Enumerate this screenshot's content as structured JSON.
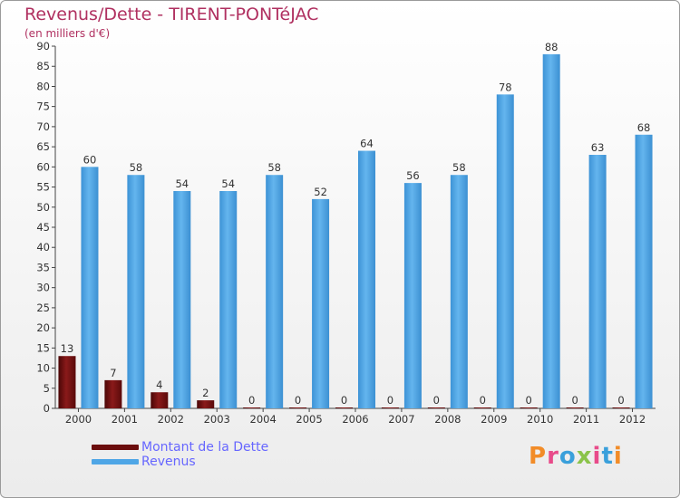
{
  "header": {
    "title": "Revenus/Dette - TIRENT-PONTéJAC",
    "subtitle": "(en milliers d'€)"
  },
  "legend": {
    "items": [
      {
        "label": "Montant de la Dette",
        "color": "#6b0d0d"
      },
      {
        "label": "Revenus",
        "color": "#4fa6e6"
      }
    ]
  },
  "logo": {
    "text": "Proxiti",
    "colors": [
      "#f28c28",
      "#e84b8a",
      "#3aa0db",
      "#8bc34a",
      "#e84b8a",
      "#3aa0db",
      "#f28c28"
    ]
  },
  "chart_data": {
    "type": "bar",
    "categories": [
      "2000",
      "2001",
      "2002",
      "2003",
      "2004",
      "2005",
      "2006",
      "2007",
      "2008",
      "2009",
      "2010",
      "2011",
      "2012"
    ],
    "series": [
      {
        "name": "Montant de la Dette",
        "color": "#6b0d0d",
        "values": [
          13,
          7,
          4,
          2,
          0,
          0,
          0,
          0,
          0,
          0,
          0,
          0,
          0
        ]
      },
      {
        "name": "Revenus",
        "color": "#4fa6e6",
        "values": [
          60,
          58,
          54,
          54,
          58,
          52,
          64,
          56,
          58,
          78,
          88,
          63,
          68
        ]
      }
    ],
    "title": "Revenus/Dette - TIRENT-PONTéJAC",
    "subtitle": "(en milliers d'€)",
    "ylim": [
      0,
      90
    ],
    "yticks": [
      0,
      5,
      10,
      15,
      20,
      25,
      30,
      35,
      40,
      45,
      50,
      55,
      60,
      65,
      70,
      75,
      80,
      85,
      90
    ],
    "grid": false,
    "legend_position": "bottom-left"
  }
}
